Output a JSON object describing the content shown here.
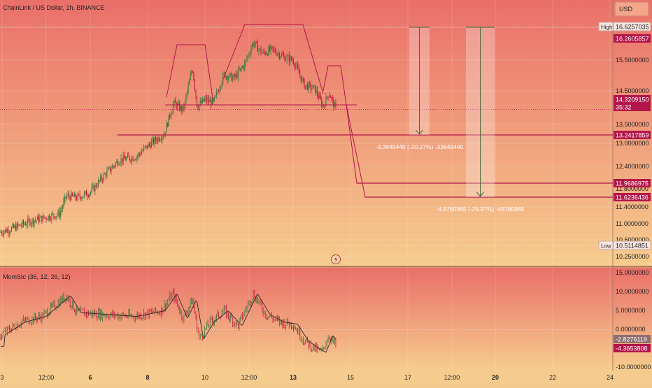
{
  "header": {
    "title": "ChainLink / US Dollar, 1h, BINANCE",
    "currency_button": "USD"
  },
  "indicator": {
    "title": "MomStc (36, 12, 26, 12)"
  },
  "colors": {
    "up": "#3f7a3a",
    "down": "#c0183f",
    "line": "#b3154a",
    "level_bg": "#b3154a",
    "bg_top": "#ea6f69",
    "bg_bottom": "#f6cc8e"
  },
  "price_axis": {
    "ticks": [
      "15.5000000",
      "14.5000000",
      "13.5000000",
      "13.0000000",
      "12.4000000",
      "11.8000000",
      "11.4000000",
      "11.0000000",
      "10.6000000",
      "10.2500000"
    ],
    "high_label": "High",
    "high_value": "16.6257035",
    "low_label": "Low",
    "low_value": "10.5114851",
    "tags": [
      {
        "value": "16.2605857",
        "kind": "level"
      },
      {
        "value": "14.3209150",
        "kind": "last"
      },
      {
        "value": "35:32",
        "kind": "countdown"
      },
      {
        "value": "13.2417859",
        "kind": "level"
      },
      {
        "value": "11.9686975",
        "kind": "level"
      },
      {
        "value": "11.6236436",
        "kind": "level"
      }
    ]
  },
  "indicator_axis": {
    "ticks": [
      "15.0000000",
      "10.0000000",
      "5.0000000",
      "0.0000000",
      "-10.0000000"
    ],
    "tags": [
      {
        "value": "-2.8276119",
        "kind": "muted"
      },
      {
        "value": "-4.3653808",
        "kind": "level"
      }
    ]
  },
  "time_axis": {
    "labels": [
      "3",
      "12:00",
      "6",
      "8",
      "10",
      "12:00",
      "13",
      "15",
      "17",
      "12:00",
      "20",
      "22",
      "24"
    ]
  },
  "projections": [
    {
      "label": "-3.3649440 (-20.27%) -33649440"
    },
    {
      "label": "-4.9760965 (-29.97%) -49760965"
    }
  ],
  "chart_data": {
    "type": "candlestick",
    "title": "ChainLink / US Dollar, 1h, BINANCE",
    "price_range": [
      10.15,
      16.8
    ],
    "candles_approx": [
      {
        "t": "3",
        "close": 10.9
      },
      {
        "t": "12:00",
        "close": 11.35
      },
      {
        "t": "6",
        "close": 11.95
      },
      {
        "t": "8",
        "close": 13.3
      },
      {
        "t": "10",
        "close": 14.6
      },
      {
        "t": "12:00",
        "close": 16.2
      },
      {
        "t": "13",
        "close": 15.7
      },
      {
        "t": "13",
        "close": 14.32
      }
    ],
    "levels": [
      16.2605857,
      14.320915,
      13.2417859,
      11.9686975,
      11.6236436
    ],
    "projection_targets": [
      13.2417859,
      11.6236436
    ],
    "indicator": {
      "name": "MomStc (36, 12, 26, 12)",
      "range": [
        -11,
        16
      ],
      "last_values": [
        -2.8276119,
        -4.3653808
      ]
    }
  }
}
